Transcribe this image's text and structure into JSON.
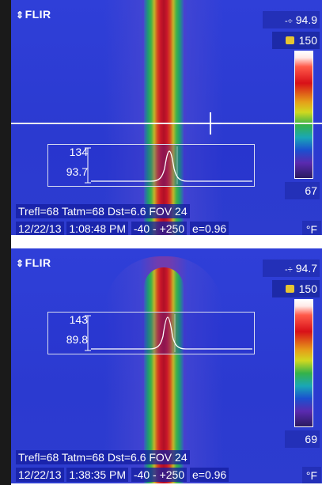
{
  "panels": [
    {
      "logo": "FLIR",
      "max_symbol": "-÷",
      "max_value": "94.9",
      "lock_value": "150",
      "min_value": "67",
      "profile": {
        "high": "134",
        "low": "93.7"
      },
      "status": {
        "line1": "Trefl=68 Tatm=68 Dst=6.6 FOV 24",
        "date": "12/22/13",
        "time": "1:08:48 PM",
        "range": "-40 -  +250",
        "emissivity": "e=0.96",
        "unit": "°F"
      }
    },
    {
      "logo": "FLIR",
      "max_symbol": "-÷",
      "max_value": "94.7",
      "lock_value": "150",
      "min_value": "69",
      "profile": {
        "high": "143",
        "low": "89.8"
      },
      "status": {
        "line1": "Trefl=68 Tatm=68 Dst=6.6 FOV 24",
        "date": "12/22/13",
        "time": "1:38:35 PM",
        "range": "-40 -  +250",
        "emissivity": "e=0.96",
        "unit": "°F"
      }
    }
  ],
  "colors": {
    "background": "#2d3ccf",
    "readout_box": "#2330b8",
    "lock": "#e7c531"
  }
}
